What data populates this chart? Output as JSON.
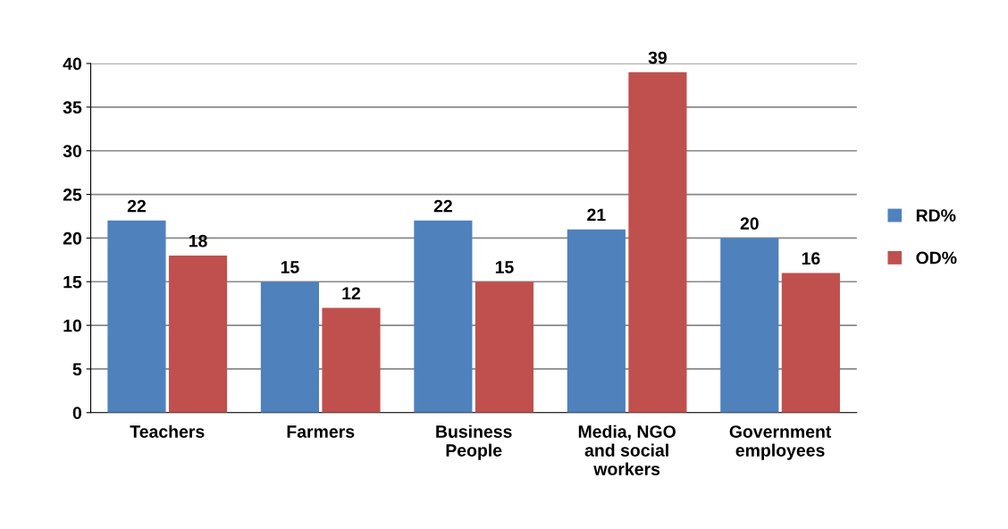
{
  "chart_data": {
    "type": "bar",
    "categories": [
      "Teachers",
      "Farmers",
      "Business\nPeople",
      "Media, NGO\nand social\nworkers",
      "Government\nemployees"
    ],
    "series": [
      {
        "name": "RD%",
        "color": "#4f81bd",
        "values": [
          22,
          15,
          22,
          21,
          20
        ]
      },
      {
        "name": "OD%",
        "color": "#c0504d",
        "values": [
          18,
          12,
          15,
          39,
          16
        ]
      }
    ],
    "ylim": [
      0,
      40
    ],
    "yticks": [
      0,
      5,
      10,
      15,
      20,
      25,
      30,
      35,
      40
    ],
    "grid": "y",
    "legend": "right",
    "data_labels": true
  }
}
